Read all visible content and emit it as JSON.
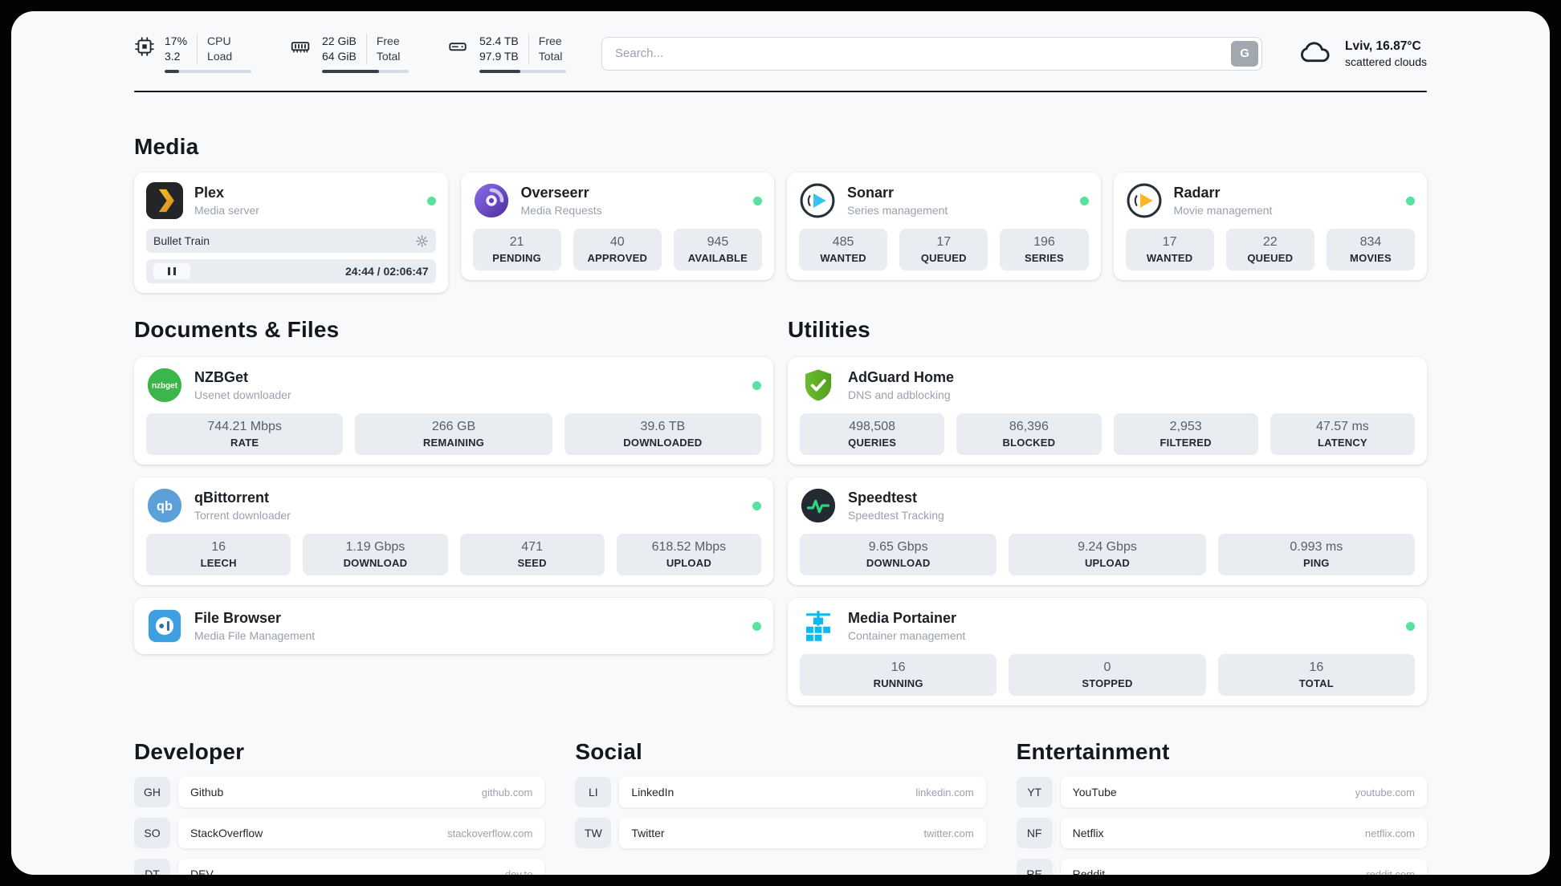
{
  "header": {
    "cpu": {
      "value": "17%",
      "load": "3.2",
      "label1": "CPU",
      "label2": "Load",
      "bar": 17
    },
    "ram": {
      "free": "22 GiB",
      "total": "64 GiB",
      "label1": "Free",
      "label2": "Total",
      "bar": 66
    },
    "disk": {
      "free": "52.4 TB",
      "total": "97.9 TB",
      "label1": "Free",
      "label2": "Total",
      "bar": 47
    },
    "search": {
      "placeholder": "Search...",
      "button": "G"
    },
    "weather": {
      "location": "Lviv, 16.87°C",
      "description": "scattered clouds"
    }
  },
  "sections": {
    "media": "Media",
    "documents": "Documents & Files",
    "utilities": "Utilities",
    "developer": "Developer",
    "social": "Social",
    "entertainment": "Entertainment"
  },
  "apps": {
    "plex": {
      "name": "Plex",
      "subtitle": "Media server",
      "now_playing": "Bullet Train",
      "time": "24:44 / 02:06:47"
    },
    "overseerr": {
      "name": "Overseerr",
      "subtitle": "Media Requests",
      "stats": [
        {
          "value": "21",
          "label": "PENDING"
        },
        {
          "value": "40",
          "label": "APPROVED"
        },
        {
          "value": "945",
          "label": "AVAILABLE"
        }
      ]
    },
    "sonarr": {
      "name": "Sonarr",
      "subtitle": "Series management",
      "stats": [
        {
          "value": "485",
          "label": "WANTED"
        },
        {
          "value": "17",
          "label": "QUEUED"
        },
        {
          "value": "196",
          "label": "SERIES"
        }
      ]
    },
    "radarr": {
      "name": "Radarr",
      "subtitle": "Movie management",
      "stats": [
        {
          "value": "17",
          "label": "WANTED"
        },
        {
          "value": "22",
          "label": "QUEUED"
        },
        {
          "value": "834",
          "label": "MOVIES"
        }
      ]
    },
    "nzbget": {
      "name": "NZBGet",
      "subtitle": "Usenet downloader",
      "stats": [
        {
          "value": "744.21 Mbps",
          "label": "RATE"
        },
        {
          "value": "266 GB",
          "label": "REMAINING"
        },
        {
          "value": "39.6 TB",
          "label": "DOWNLOADED"
        }
      ]
    },
    "qbittorrent": {
      "name": "qBittorrent",
      "subtitle": "Torrent downloader",
      "stats": [
        {
          "value": "16",
          "label": "LEECH"
        },
        {
          "value": "1.19 Gbps",
          "label": "DOWNLOAD"
        },
        {
          "value": "471",
          "label": "SEED"
        },
        {
          "value": "618.52 Mbps",
          "label": "UPLOAD"
        }
      ]
    },
    "filebrowser": {
      "name": "File Browser",
      "subtitle": "Media File Management"
    },
    "adguard": {
      "name": "AdGuard Home",
      "subtitle": "DNS and adblocking",
      "stats": [
        {
          "value": "498,508",
          "label": "QUERIES"
        },
        {
          "value": "86,396",
          "label": "BLOCKED"
        },
        {
          "value": "2,953",
          "label": "FILTERED"
        },
        {
          "value": "47.57 ms",
          "label": "LATENCY"
        }
      ]
    },
    "speedtest": {
      "name": "Speedtest",
      "subtitle": "Speedtest Tracking",
      "stats": [
        {
          "value": "9.65 Gbps",
          "label": "DOWNLOAD"
        },
        {
          "value": "9.24 Gbps",
          "label": "UPLOAD"
        },
        {
          "value": "0.993 ms",
          "label": "PING"
        }
      ]
    },
    "portainer": {
      "name": "Media Portainer",
      "subtitle": "Container management",
      "stats": [
        {
          "value": "16",
          "label": "RUNNING"
        },
        {
          "value": "0",
          "label": "STOPPED"
        },
        {
          "value": "16",
          "label": "TOTAL"
        }
      ]
    }
  },
  "icons": {
    "nzbget_label": "nzbget",
    "qbittorrent_label": "qb"
  },
  "bookmarks": {
    "developer": [
      {
        "abbr": "GH",
        "name": "Github",
        "url": "github.com"
      },
      {
        "abbr": "SO",
        "name": "StackOverflow",
        "url": "stackoverflow.com"
      },
      {
        "abbr": "DT",
        "name": "DEV",
        "url": "dev.to"
      }
    ],
    "social": [
      {
        "abbr": "LI",
        "name": "LinkedIn",
        "url": "linkedin.com"
      },
      {
        "abbr": "TW",
        "name": "Twitter",
        "url": "twitter.com"
      }
    ],
    "entertainment": [
      {
        "abbr": "YT",
        "name": "YouTube",
        "url": "youtube.com"
      },
      {
        "abbr": "NF",
        "name": "Netflix",
        "url": "netflix.com"
      },
      {
        "abbr": "RE",
        "name": "Reddit",
        "url": "reddit.com"
      }
    ]
  },
  "colors": {
    "status_online": "#57e2a0",
    "panel_bg": "#f7f9fb",
    "tile_bg": "#e9edf2"
  }
}
